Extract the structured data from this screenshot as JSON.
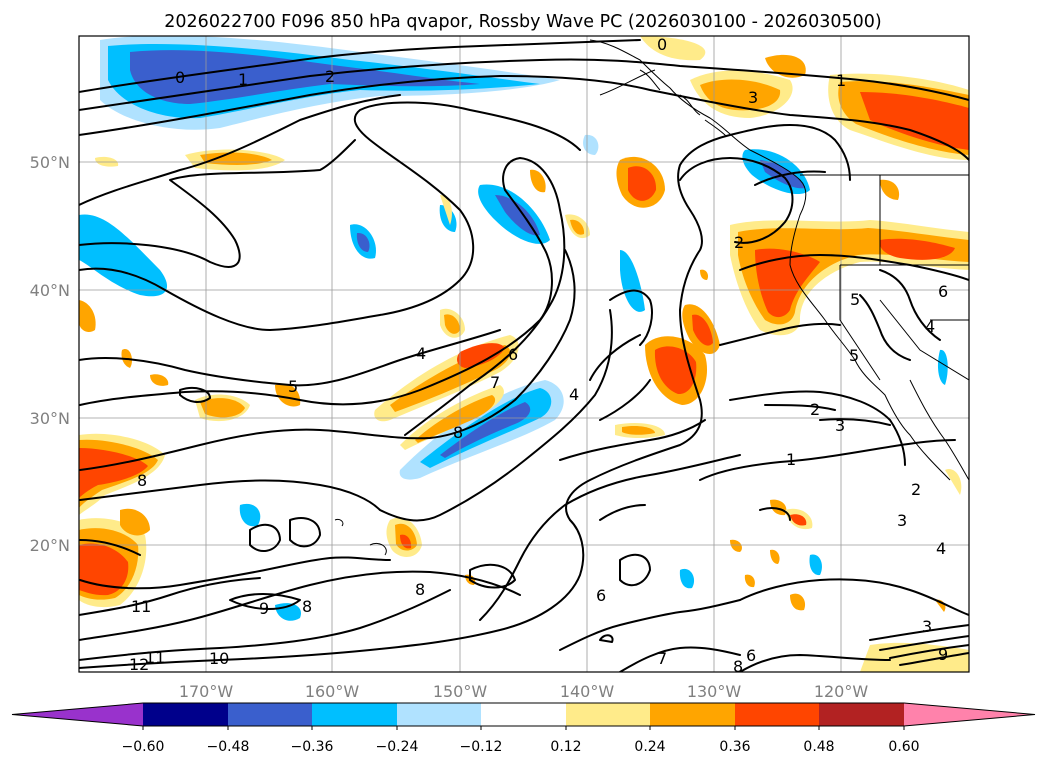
{
  "title": "2026022700 F096 850 hPa qvapor, Rossby Wave PC (2026030100 - 2026030500)",
  "lat_labels": [
    "50°N",
    "40°N",
    "30°N",
    "20°N"
  ],
  "lon_labels": [
    "170°W",
    "160°W",
    "150°W",
    "140°W",
    "130°W",
    "120°W"
  ],
  "colorbar": {
    "ticks": [
      "−0.60",
      "−0.48",
      "−0.36",
      "−0.24",
      "−0.12",
      "0.12",
      "0.24",
      "0.36",
      "0.48",
      "0.60"
    ],
    "colors": [
      "#9932cc",
      "#00008b",
      "#3a5fcd",
      "#00bfff",
      "#b0e2ff",
      "#ffffff",
      "#ffeb8a",
      "#ffa500",
      "#ff4500",
      "#b22222",
      "#ff82ab"
    ]
  },
  "contour_labels": [
    "0",
    "1",
    "2",
    "0",
    "3",
    "1",
    "2",
    "4",
    "5",
    "6",
    "7",
    "8",
    "4",
    "5",
    "2",
    "3",
    "4",
    "5",
    "6",
    "8",
    "9",
    "8",
    "11",
    "12",
    "11",
    "10",
    "8",
    "6",
    "7",
    "8",
    "6",
    "2",
    "3",
    "4",
    "3",
    "9",
    "1"
  ],
  "colors": {
    "grid": "#9a9a9a",
    "label": "#808080"
  }
}
